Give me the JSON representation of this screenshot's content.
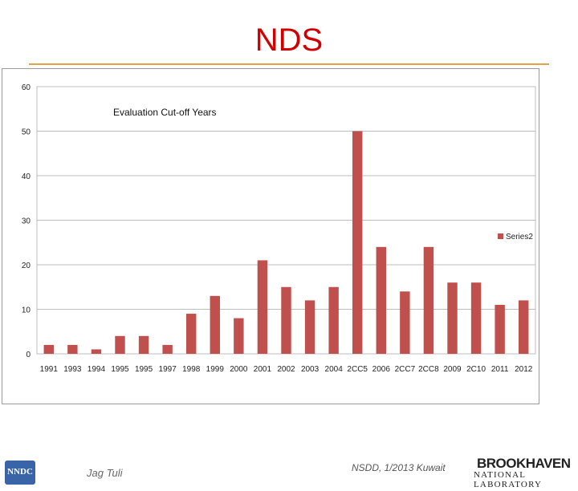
{
  "slide": {
    "title": "NDS",
    "footer_author": "Jag Tuli",
    "footer_meeting": "NSDD, 1/2013 Kuwait",
    "logo_left_text": "NNDC",
    "logo_right_top": "BROOKHAVEN",
    "logo_right_bottom": "NATIONAL LABORATORY"
  },
  "colors": {
    "title": "#d00000",
    "bar": "#c0504d",
    "rule": "#e2a24a"
  },
  "chart_data": {
    "type": "bar",
    "title": "Evaluation Cut-off Years",
    "xlabel": "",
    "ylabel": "",
    "ylim": [
      0,
      60
    ],
    "yticks": [
      0,
      10,
      20,
      30,
      40,
      50,
      60
    ],
    "grid": true,
    "legend_position": "right",
    "categories": [
      "1991",
      "1993",
      "1994",
      "1995",
      "1995",
      "1997",
      "1998",
      "1999",
      "2000",
      "2001",
      "2002",
      "2003",
      "2004",
      "2CC5",
      "2006",
      "2CC7",
      "2CC8",
      "2009",
      "2C10",
      "2011",
      "2012"
    ],
    "series": [
      {
        "name": "Series2",
        "values": [
          2,
          2,
          1,
          4,
          4,
          2,
          9,
          13,
          8,
          21,
          15,
          12,
          15,
          50,
          24,
          14,
          24,
          16,
          16,
          11,
          12
        ]
      }
    ]
  }
}
